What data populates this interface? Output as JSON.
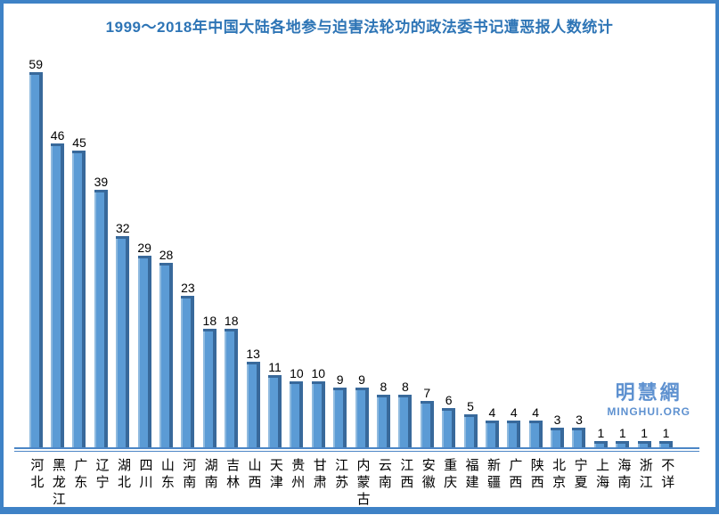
{
  "title": "1999～2018年中国大陆各地参与迫害法轮功的政法委书记遭恶报人数统计",
  "watermark": {
    "cn": "明慧網",
    "en": "MINGHUI.ORG"
  },
  "colors": {
    "frame_border": "#3E82C6",
    "title_text": "#2E75B6",
    "bar_main": "#5B9BD5",
    "bar_dark_edge": "#38699B",
    "bar_light_edge": "#8FBADF",
    "axis_line": "#4C86C6",
    "value_label": "#000000",
    "watermark_text": "#5E91D0"
  },
  "chart_data": {
    "type": "bar",
    "title": "1999～2018年中国大陆各地参与迫害法轮功的政法委书记遭恶报人数统计",
    "categories": [
      "河北",
      "黑龙江",
      "广东",
      "辽宁",
      "湖北",
      "四川",
      "山东",
      "河南",
      "湖南",
      "吉林",
      "山西",
      "天津",
      "贵州",
      "甘肃",
      "江苏",
      "内蒙古",
      "云南",
      "江西",
      "安徽",
      "重庆",
      "福建",
      "新疆",
      "广西",
      "陕西",
      "北京",
      "宁夏",
      "上海",
      "海南",
      "浙江",
      "不详"
    ],
    "values": [
      59,
      46,
      45,
      39,
      32,
      29,
      28,
      23,
      18,
      18,
      13,
      11,
      10,
      10,
      9,
      9,
      8,
      8,
      7,
      6,
      5,
      4,
      4,
      4,
      3,
      3,
      1,
      1,
      1,
      1
    ],
    "xlabel": "",
    "ylabel": "",
    "ylim": [
      0,
      62
    ],
    "grid": false,
    "legend": false,
    "value_labels_shown": true,
    "axis_ticks_shown": false
  }
}
